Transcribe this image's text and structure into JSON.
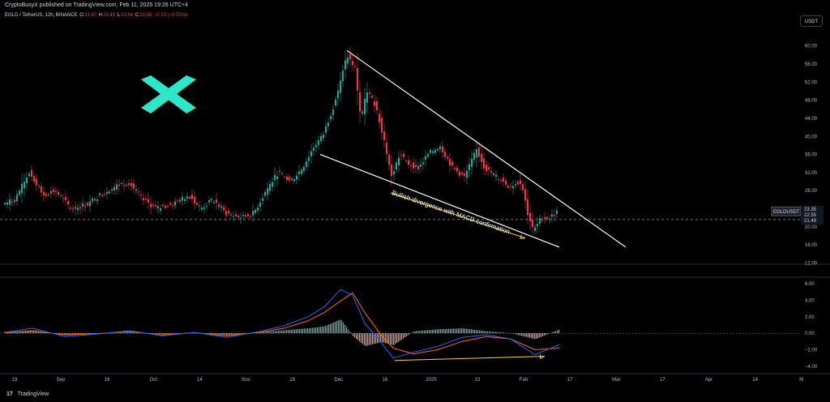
{
  "header": {
    "published": "CryptoBusyX published on TradingView.com, Feb 11, 2025 19:26 UTC+4"
  },
  "legend": {
    "symbol": "EGLD / TetherUS, 12h, BINANCE",
    "o_label": "O",
    "o_value": "23.47",
    "h_label": "H",
    "h_value": "23.49",
    "l_label": "L",
    "l_value": "22.84",
    "c_label": "C",
    "c_value": "23.35",
    "change": "−0.13 (−0.55%)"
  },
  "currency_button": "USDT",
  "footer": {
    "brand": "TradingView",
    "logo": "17"
  },
  "colors": {
    "up": "#26a69a",
    "down": "#f23645",
    "macd": "#2962ff",
    "signal": "#ff6d00",
    "accent": "#2ee6c8",
    "arrow": "#f5d547",
    "line": "#ffffff"
  },
  "chart_data": {
    "type": "candlestick",
    "symbol": "EGLDUSDT",
    "price_axis": {
      "ticks": [
        60,
        56,
        52,
        48,
        44,
        40,
        36,
        32,
        28,
        24,
        20,
        16,
        12
      ],
      "labels": [
        "60.00",
        "56.00",
        "52.00",
        "48.00",
        "44.00",
        "40.00",
        "36.00",
        "32.00",
        "28.00",
        "24.00",
        "20.00",
        "16.00",
        "12.00"
      ],
      "ylim": [
        11,
        63
      ]
    },
    "time_axis": [
      "19",
      "Sep",
      "16",
      "Oct",
      "14",
      "Nov",
      "18",
      "Dec",
      "16",
      "2025",
      "13",
      "Feb",
      "17",
      "Mar",
      "17",
      "Apr",
      "14",
      "M"
    ],
    "current_price": 23.35,
    "price_label": "EGLDUSDT",
    "price_tags": [
      "23.35",
      "22.55",
      "21.49"
    ],
    "horizontal_level": 21.6,
    "price_path": [
      {
        "x": 5,
        "y": 25
      },
      {
        "x": 20,
        "y": 26
      },
      {
        "x": 38,
        "y": 32
      },
      {
        "x": 55,
        "y": 27
      },
      {
        "x": 70,
        "y": 28
      },
      {
        "x": 90,
        "y": 24
      },
      {
        "x": 110,
        "y": 25
      },
      {
        "x": 125,
        "y": 27
      },
      {
        "x": 145,
        "y": 29
      },
      {
        "x": 160,
        "y": 30
      },
      {
        "x": 178,
        "y": 26
      },
      {
        "x": 195,
        "y": 24
      },
      {
        "x": 215,
        "y": 25
      },
      {
        "x": 235,
        "y": 27
      },
      {
        "x": 250,
        "y": 24
      },
      {
        "x": 265,
        "y": 26
      },
      {
        "x": 280,
        "y": 23
      },
      {
        "x": 300,
        "y": 22
      },
      {
        "x": 315,
        "y": 23
      },
      {
        "x": 330,
        "y": 28
      },
      {
        "x": 345,
        "y": 32
      },
      {
        "x": 360,
        "y": 30
      },
      {
        "x": 375,
        "y": 33
      },
      {
        "x": 390,
        "y": 38
      },
      {
        "x": 400,
        "y": 40
      },
      {
        "x": 412,
        "y": 46
      },
      {
        "x": 422,
        "y": 52
      },
      {
        "x": 430,
        "y": 58
      },
      {
        "x": 440,
        "y": 55
      },
      {
        "x": 447,
        "y": 44
      },
      {
        "x": 455,
        "y": 50
      },
      {
        "x": 465,
        "y": 47
      },
      {
        "x": 475,
        "y": 40
      },
      {
        "x": 485,
        "y": 31
      },
      {
        "x": 495,
        "y": 36
      },
      {
        "x": 505,
        "y": 34
      },
      {
        "x": 518,
        "y": 33
      },
      {
        "x": 530,
        "y": 36
      },
      {
        "x": 545,
        "y": 38
      },
      {
        "x": 560,
        "y": 33
      },
      {
        "x": 575,
        "y": 31
      },
      {
        "x": 590,
        "y": 37
      },
      {
        "x": 600,
        "y": 33
      },
      {
        "x": 615,
        "y": 31
      },
      {
        "x": 630,
        "y": 29
      },
      {
        "x": 645,
        "y": 30
      },
      {
        "x": 653,
        "y": 23
      },
      {
        "x": 660,
        "y": 19
      },
      {
        "x": 670,
        "y": 22
      },
      {
        "x": 680,
        "y": 22
      },
      {
        "x": 690,
        "y": 23.35
      }
    ],
    "annotations": {
      "divergence_text": "Bullish divergence with MACD confirmation",
      "wedge_upper": [
        {
          "x": 428,
          "y": 59
        },
        {
          "x": 772,
          "y": 15.5
        }
      ],
      "wedge_lower": [
        {
          "x": 395,
          "y": 36
        },
        {
          "x": 690,
          "y": 15.5
        }
      ],
      "price_arrow": [
        {
          "x": 482,
          "y": 27.5
        },
        {
          "x": 648,
          "y": 17.5
        }
      ]
    },
    "macd": {
      "axis_ticks": [
        6,
        4,
        2,
        0,
        -2,
        -4
      ],
      "axis_labels": [
        "6.00",
        "4.00",
        "2.00",
        "0.00",
        "−2.00",
        "−4.00"
      ],
      "ylim": [
        -4.8,
        6.5
      ],
      "series": [
        {
          "name": "MACD",
          "points": [
            [
              5,
              0.1
            ],
            [
              40,
              0.6
            ],
            [
              80,
              -0.4
            ],
            [
              120,
              -0.1
            ],
            [
              160,
              0.3
            ],
            [
              200,
              -0.3
            ],
            [
              240,
              0.1
            ],
            [
              280,
              -0.5
            ],
            [
              320,
              0.2
            ],
            [
              350,
              0.9
            ],
            [
              380,
              2.0
            ],
            [
              400,
              3.2
            ],
            [
              420,
              5.3
            ],
            [
              435,
              4.6
            ],
            [
              450,
              1.2
            ],
            [
              470,
              -1.1
            ],
            [
              485,
              -3.0
            ],
            [
              510,
              -2.3
            ],
            [
              540,
              -1.6
            ],
            [
              570,
              -0.5
            ],
            [
              600,
              -0.2
            ],
            [
              630,
              -0.7
            ],
            [
              660,
              -2.6
            ],
            [
              690,
              -1.4
            ]
          ]
        },
        {
          "name": "Signal",
          "points": [
            [
              5,
              0.05
            ],
            [
              40,
              0.3
            ],
            [
              80,
              -0.2
            ],
            [
              120,
              -0.05
            ],
            [
              160,
              0.2
            ],
            [
              200,
              -0.2
            ],
            [
              240,
              0.05
            ],
            [
              280,
              -0.3
            ],
            [
              320,
              0.1
            ],
            [
              350,
              0.6
            ],
            [
              380,
              1.5
            ],
            [
              400,
              2.5
            ],
            [
              420,
              3.9
            ],
            [
              435,
              4.9
            ],
            [
              450,
              2.5
            ],
            [
              470,
              -0.2
            ],
            [
              485,
              -1.8
            ],
            [
              510,
              -2.5
            ],
            [
              540,
              -2.0
            ],
            [
              570,
              -1.0
            ],
            [
              600,
              -0.4
            ],
            [
              630,
              -0.7
            ],
            [
              660,
              -2.0
            ],
            [
              690,
              -1.8
            ]
          ]
        }
      ],
      "histogram_range": [
        5,
        690
      ],
      "divergence_arrow": [
        {
          "x": 487,
          "y": -3.3
        },
        {
          "x": 672,
          "y": -2.8
        }
      ]
    }
  }
}
